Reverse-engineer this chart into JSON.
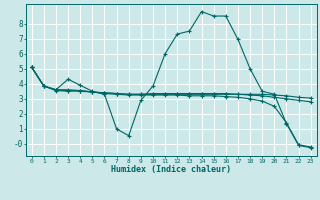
{
  "title": "",
  "xlabel": "Humidex (Indice chaleur)",
  "ylabel": "",
  "background_color": "#cce8e8",
  "grid_color": "#ffffff",
  "line_color": "#006666",
  "xlim": [
    -0.5,
    23.5
  ],
  "ylim": [
    -0.8,
    9.3
  ],
  "yticks": [
    0,
    1,
    2,
    3,
    4,
    5,
    6,
    7,
    8
  ],
  "ytick_labels": [
    "-0",
    "1",
    "2",
    "3",
    "4",
    "5",
    "6",
    "7",
    "8"
  ],
  "xticks": [
    0,
    1,
    2,
    3,
    4,
    5,
    6,
    7,
    8,
    9,
    10,
    11,
    12,
    13,
    14,
    15,
    16,
    17,
    18,
    19,
    20,
    21,
    22,
    23
  ],
  "line1_x": [
    0,
    1,
    2,
    3,
    4,
    5,
    6,
    7,
    8,
    9,
    10,
    11,
    12,
    13,
    14,
    15,
    16,
    17,
    18,
    19,
    20,
    21,
    22,
    23
  ],
  "line1_y": [
    5.1,
    3.85,
    3.6,
    4.3,
    3.9,
    3.5,
    3.3,
    1.0,
    0.55,
    2.9,
    3.85,
    6.0,
    7.3,
    7.5,
    8.8,
    8.5,
    8.5,
    6.95,
    5.0,
    3.5,
    3.3,
    1.35,
    -0.1,
    -0.25
  ],
  "line2_x": [
    0,
    1,
    2,
    3,
    4,
    5,
    6,
    7,
    8,
    9,
    10,
    11,
    12,
    13,
    14,
    15,
    16,
    17,
    18,
    19,
    20,
    21,
    22,
    23
  ],
  "line2_y": [
    5.1,
    3.85,
    3.55,
    3.5,
    3.55,
    3.45,
    3.4,
    3.35,
    3.3,
    3.3,
    3.3,
    3.3,
    3.3,
    3.3,
    3.3,
    3.3,
    3.3,
    3.3,
    3.3,
    3.3,
    3.25,
    3.2,
    3.1,
    3.05
  ],
  "line3_x": [
    0,
    1,
    2,
    3,
    4,
    5,
    6,
    7,
    8,
    9,
    10,
    11,
    12,
    13,
    14,
    15,
    16,
    17,
    18,
    19,
    20,
    21,
    22,
    23
  ],
  "line3_y": [
    5.1,
    3.85,
    3.6,
    3.55,
    3.5,
    3.45,
    3.35,
    3.3,
    3.25,
    3.25,
    3.25,
    3.25,
    3.25,
    3.2,
    3.2,
    3.2,
    3.15,
    3.1,
    3.0,
    2.85,
    2.5,
    1.4,
    -0.05,
    -0.2
  ],
  "line4_x": [
    0,
    1,
    2,
    3,
    4,
    5,
    6,
    7,
    8,
    9,
    10,
    11,
    12,
    13,
    14,
    15,
    16,
    17,
    18,
    19,
    20,
    21,
    22,
    23
  ],
  "line4_y": [
    5.1,
    3.85,
    3.6,
    3.6,
    3.55,
    3.45,
    3.4,
    3.35,
    3.3,
    3.3,
    3.35,
    3.35,
    3.35,
    3.35,
    3.35,
    3.35,
    3.35,
    3.3,
    3.25,
    3.2,
    3.1,
    3.0,
    2.9,
    2.8
  ]
}
